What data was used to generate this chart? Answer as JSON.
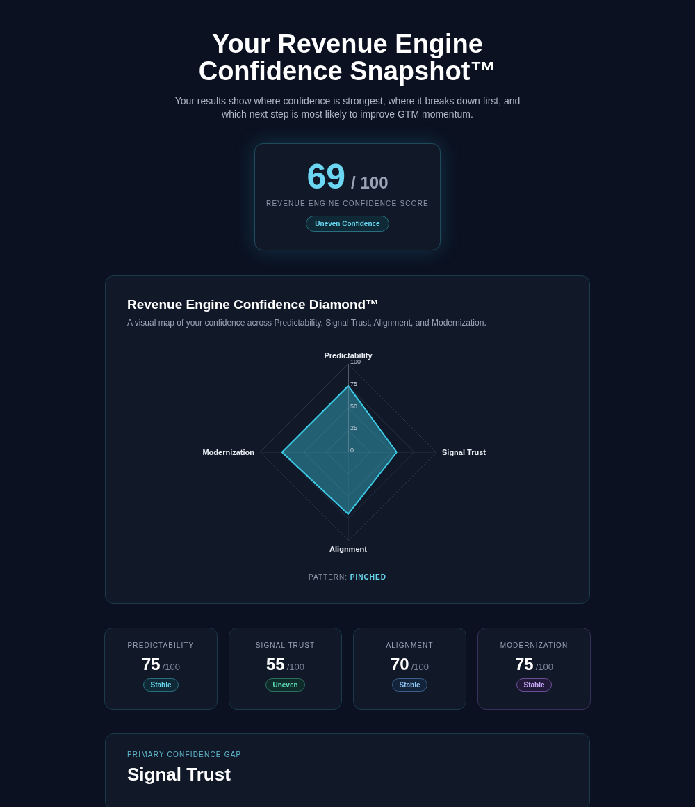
{
  "chart_data": [
    {
      "type": "other",
      "title": "Your Revenue Engine Confidence Snapshot™",
      "subtitle": "Your results show where confidence is strongest, where it breaks down first, and which next step is most likely to improve GTM momentum.",
      "annotations": [
        "69",
        "/ 100",
        "REVENUE ENGINE CONFIDENCE SCORE",
        "Uneven Confidence"
      ]
    },
    {
      "type": "radar",
      "title": "Revenue Engine Confidence Diamond™",
      "subtitle": "A visual map of your confidence across Predictability, Signal Trust, Alignment, and Modernization.",
      "categories": [
        "Predictability",
        "Signal Trust",
        "Alignment",
        "Modernization"
      ],
      "series": [
        {
          "color": "#3ccbe6",
          "values": [
            75,
            55,
            70,
            75
          ]
        }
      ],
      "ylim": [
        0,
        100
      ],
      "yticks": [
        0,
        25,
        50,
        75,
        100
      ],
      "grid": true,
      "annotations": [
        "PATTERN:",
        "PINCHED"
      ]
    },
    {
      "type": "other",
      "title": "PREDICTABILITY",
      "annotations": [
        "75",
        "/100",
        "Stable"
      ]
    },
    {
      "type": "other",
      "title": "SIGNAL TRUST",
      "annotations": [
        "55",
        "/100",
        "Uneven"
      ]
    },
    {
      "type": "other",
      "title": "ALIGNMENT",
      "annotations": [
        "70",
        "/100",
        "Stable"
      ]
    },
    {
      "type": "other",
      "title": "MODERNIZATION",
      "annotations": [
        "75",
        "/100",
        "Stable"
      ]
    },
    {
      "type": "other",
      "title": "PRIMARY CONFIDENCE GAP",
      "annotations": [
        "Signal Trust"
      ]
    }
  ]
}
